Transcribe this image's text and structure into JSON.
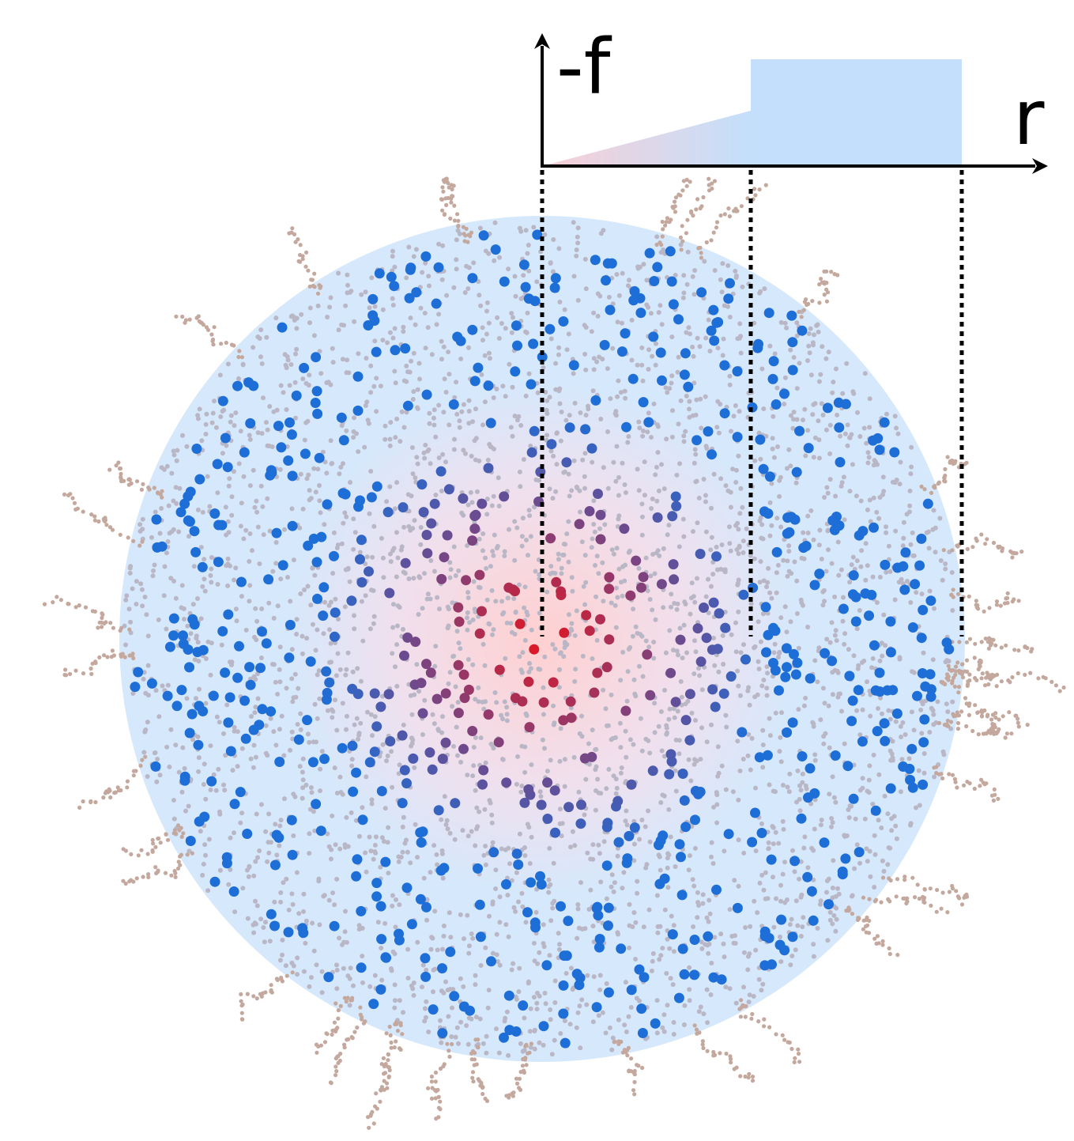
{
  "axis": {
    "y_label": "-f",
    "x_label": "r"
  }
}
